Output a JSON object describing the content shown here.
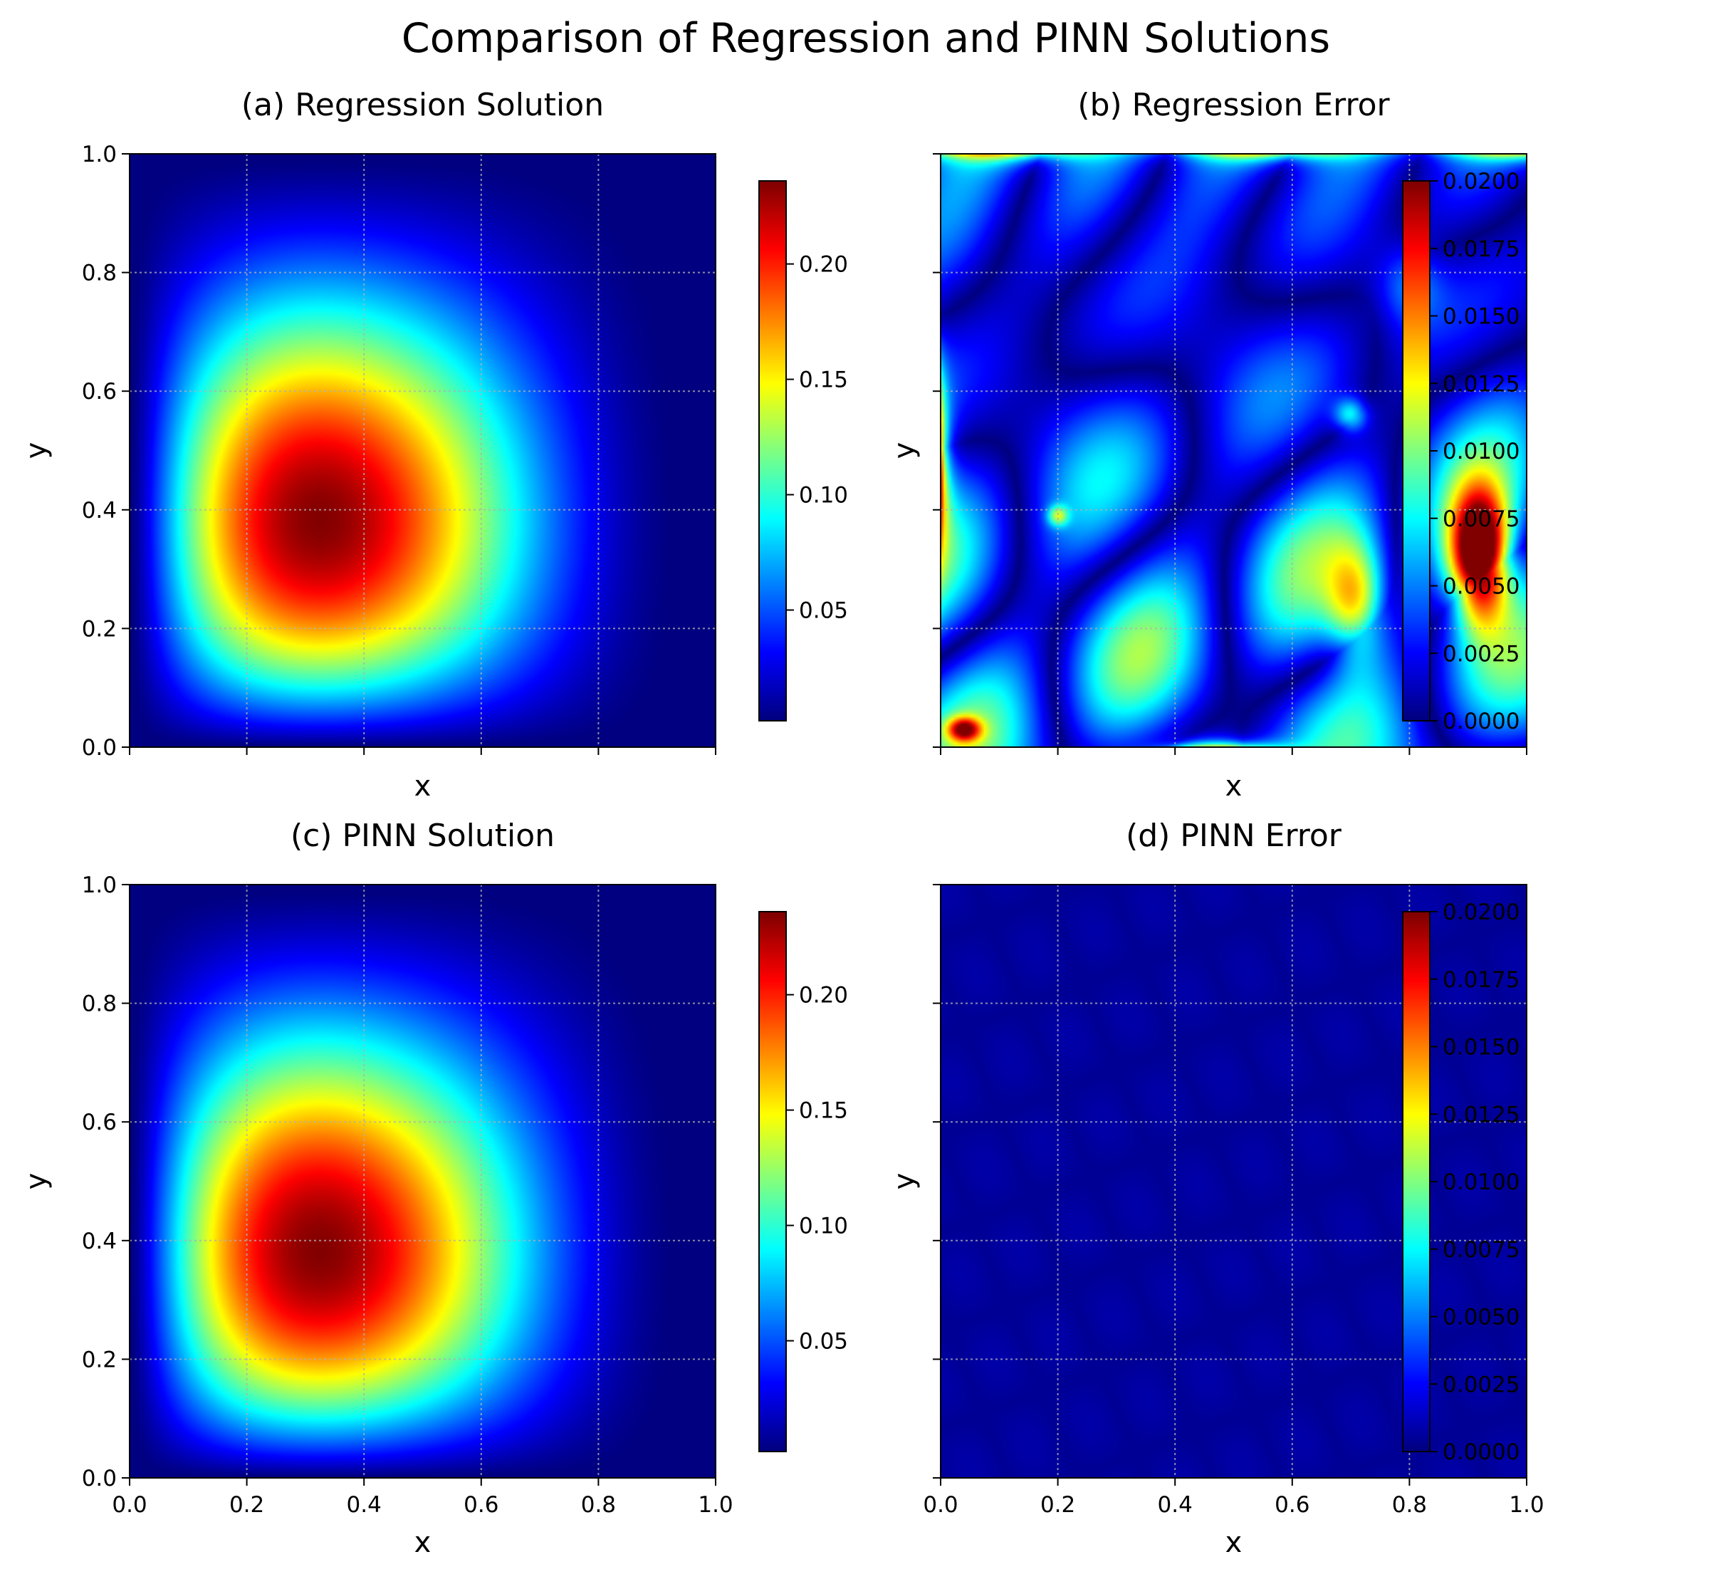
{
  "figure": {
    "title": "Comparison of Regression and PINN Solutions"
  },
  "chart_data": [
    {
      "id": "a",
      "type": "heatmap",
      "title": "(a) Regression Solution",
      "xlabel": "x",
      "ylabel": "y",
      "xlim": [
        0,
        1
      ],
      "ylim": [
        0,
        1
      ],
      "xticks": [
        "0.0",
        "0.2",
        "0.4",
        "0.6",
        "0.8",
        "1.0"
      ],
      "yticks": [
        "0.0",
        "0.2",
        "0.4",
        "0.6",
        "0.8",
        "1.0"
      ],
      "show_xticklabels": false,
      "show_yticklabels": true,
      "grid": true,
      "colormap": "jet",
      "field": "solution",
      "peak": {
        "x": 0.32,
        "y": 0.32,
        "value": 0.235
      },
      "colorbar": {
        "min": 0.002,
        "max": 0.236,
        "ticks": [
          0.05,
          0.1,
          0.15,
          0.2
        ],
        "tick_labels": [
          "0.05",
          "0.10",
          "0.15",
          "0.20"
        ]
      }
    },
    {
      "id": "b",
      "type": "heatmap",
      "title": "(b) Regression Error",
      "xlabel": "x",
      "ylabel": "y",
      "xlim": [
        0,
        1
      ],
      "ylim": [
        0,
        1
      ],
      "xticks": [
        "0.0",
        "0.2",
        "0.4",
        "0.6",
        "0.8",
        "1.0"
      ],
      "yticks": [
        "0.0",
        "0.2",
        "0.4",
        "0.6",
        "0.8",
        "1.0"
      ],
      "show_xticklabels": false,
      "show_yticklabels": false,
      "grid": true,
      "colormap": "jet",
      "field": "regression_error",
      "max_error_location": {
        "x": 0.92,
        "y": 0.32,
        "value": 0.02
      },
      "colorbar": {
        "min": 0.0,
        "max": 0.02,
        "ticks": [
          0.0,
          0.0025,
          0.005,
          0.0075,
          0.01,
          0.0125,
          0.015,
          0.0175,
          0.02
        ],
        "tick_labels": [
          "0.0000",
          "0.0025",
          "0.0050",
          "0.0075",
          "0.0100",
          "0.0125",
          "0.0150",
          "0.0175",
          "0.0200"
        ]
      }
    },
    {
      "id": "c",
      "type": "heatmap",
      "title": "(c) PINN Solution",
      "xlabel": "x",
      "ylabel": "y",
      "xlim": [
        0,
        1
      ],
      "ylim": [
        0,
        1
      ],
      "xticks": [
        "0.0",
        "0.2",
        "0.4",
        "0.6",
        "0.8",
        "1.0"
      ],
      "yticks": [
        "0.0",
        "0.2",
        "0.4",
        "0.6",
        "0.8",
        "1.0"
      ],
      "show_xticklabels": true,
      "show_yticklabels": true,
      "grid": true,
      "colormap": "jet",
      "field": "solution",
      "peak": {
        "x": 0.32,
        "y": 0.32,
        "value": 0.235
      },
      "colorbar": {
        "min": 0.002,
        "max": 0.236,
        "ticks": [
          0.05,
          0.1,
          0.15,
          0.2
        ],
        "tick_labels": [
          "0.05",
          "0.10",
          "0.15",
          "0.20"
        ]
      }
    },
    {
      "id": "d",
      "type": "heatmap",
      "title": "(d) PINN Error",
      "xlabel": "x",
      "ylabel": "y",
      "xlim": [
        0,
        1
      ],
      "ylim": [
        0,
        1
      ],
      "xticks": [
        "0.0",
        "0.2",
        "0.4",
        "0.6",
        "0.8",
        "1.0"
      ],
      "yticks": [
        "0.0",
        "0.2",
        "0.4",
        "0.6",
        "0.8",
        "1.0"
      ],
      "show_xticklabels": true,
      "show_yticklabels": false,
      "grid": true,
      "colormap": "jet",
      "field": "pinn_error",
      "typical_error": 0.0005,
      "colorbar": {
        "min": 0.0,
        "max": 0.02,
        "ticks": [
          0.0,
          0.0025,
          0.005,
          0.0075,
          0.01,
          0.0125,
          0.015,
          0.0175,
          0.02
        ],
        "tick_labels": [
          "0.0000",
          "0.0025",
          "0.0050",
          "0.0075",
          "0.0100",
          "0.0125",
          "0.0150",
          "0.0175",
          "0.0200"
        ]
      }
    }
  ]
}
